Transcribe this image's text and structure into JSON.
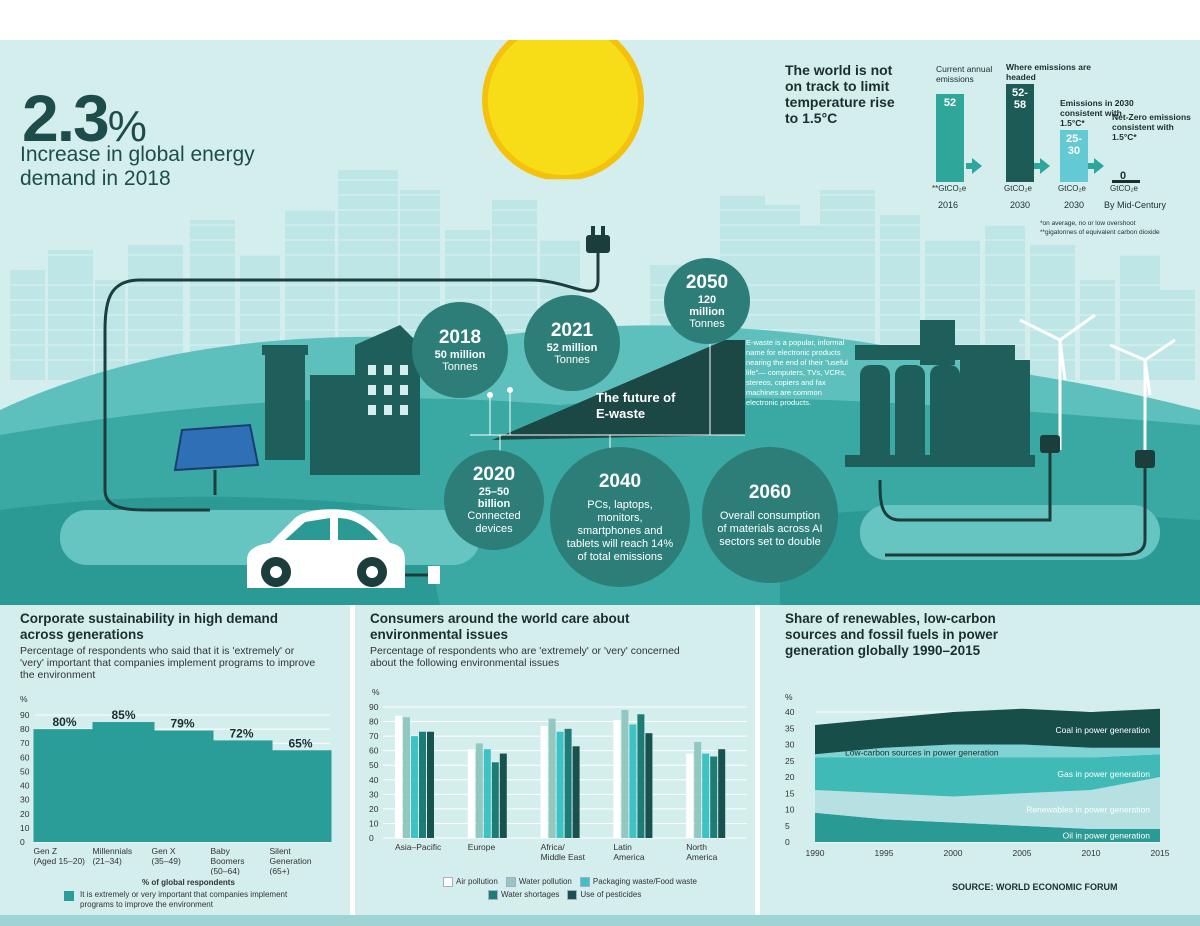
{
  "hero": {
    "big_number": "2.3",
    "big_unit": "%",
    "description": "Increase in global energy demand in 2018",
    "ewaste_title_1": "The future of",
    "ewaste_title_2": "E-waste",
    "ewaste_desc": "E-waste is a popular, informal name for electronic products nearing the end of their \"useful life\"— computers, TVs, VCRs, stereos, copiers and fax machines are common electronic products.",
    "circles": [
      {
        "year": "2018",
        "value": "50 million",
        "unit": "Tonnes"
      },
      {
        "year": "2021",
        "value": "52 million",
        "unit": "Tonnes"
      },
      {
        "year": "2050",
        "value": "120 million",
        "unit": "Tonnes"
      },
      {
        "year": "2020",
        "value": "25–50 billion",
        "unit": "Connected devices"
      },
      {
        "year": "2040",
        "text": "PCs, laptops, monitors, smartphones and tablets will reach 14% of total emissions"
      },
      {
        "year": "2060",
        "text": "Overall consumption of materials across AI sectors set to double"
      }
    ]
  },
  "emissions": {
    "headline": "The world is not on track to limit temperature rise to 1.5°C",
    "columns": [
      {
        "label": "Current annual emissions",
        "value": "52",
        "unit": "**GtCO₂e",
        "year": "2016",
        "color": "#2fa69a"
      },
      {
        "label": "Where emissions are headed",
        "value_top": "52-",
        "value_bottom": "58",
        "unit": "GtCO₂e",
        "year": "2030",
        "color": "#1d5b57"
      },
      {
        "label": "Emissions in 2030 consistent with 1.5°C*",
        "value_top": "25-",
        "value_bottom": "30",
        "unit": "GtCO₂e",
        "year": "2030",
        "color": "#63c9d2"
      },
      {
        "label": "Net-Zero emissions consistent with 1.5°C*",
        "value": "0",
        "unit": "GtCO₂e",
        "year": "By Mid-Century",
        "color": "#1b2e2d"
      }
    ],
    "note1": "*on average, no or low overshoot",
    "note2": "**gigatonnes of equivalent carbon dioxide",
    "colors": {
      "arrow": "#2fa69a"
    }
  },
  "panel1": {
    "title": "Corporate sustainability in high demand across generations",
    "subtitle": "Percentage of respondents who said that it is 'extremely' or 'very' important that companies implement programs to improve the environment",
    "legend_title": "% of global respondents",
    "legend_item": "It is extremely or very important that companies implement programs to improve the environment"
  },
  "panel2": {
    "title": "Consumers around the world care about environmental issues",
    "subtitle": "Percentage of respondents who are 'extremely' or 'very' concerned about the following environmental issues"
  },
  "panel3": {
    "title": "Share of renewables, low-carbon sources and fossil fuels in power generation globally 1990–2015",
    "source": "SOURCE: WORLD ECONOMIC FORUM"
  },
  "chart_data": [
    {
      "type": "bar",
      "ylabel": "%",
      "ylim": [
        0,
        90
      ],
      "yticks": [
        0,
        10,
        20,
        30,
        40,
        50,
        60,
        70,
        80,
        90
      ],
      "categories": [
        "Gen Z (Aged 15–20)",
        "Millennials (21–34)",
        "Gen X (35–49)",
        "Baby Boomers (50–64)",
        "Silent Generation (65+)"
      ],
      "category_lines": [
        [
          "Gen Z",
          "(Aged 15–20)"
        ],
        [
          "Millennials",
          "(21–34)"
        ],
        [
          "Gen X",
          "(35–49)"
        ],
        [
          "Baby",
          "Boomers",
          "(50–64)"
        ],
        [
          "Silent",
          "Generation",
          "(65+)"
        ]
      ],
      "values": [
        80,
        85,
        79,
        72,
        65
      ],
      "data_labels": [
        "80%",
        "85%",
        "79%",
        "72%",
        "65%"
      ],
      "color": "#2a9d98"
    },
    {
      "type": "bar",
      "ylabel": "%",
      "ylim": [
        0,
        90
      ],
      "yticks": [
        0,
        10,
        20,
        30,
        40,
        50,
        60,
        70,
        80,
        90
      ],
      "categories": [
        "Asia–Pacific",
        "Europe",
        "Africa/ Middle East",
        "Latin America",
        "North America"
      ],
      "category_lines": [
        [
          "Asia–Pacific"
        ],
        [
          "Europe"
        ],
        [
          "Africa/",
          "Middle East"
        ],
        [
          "Latin",
          "America"
        ],
        [
          "North",
          "America"
        ]
      ],
      "series": [
        {
          "name": "Air pollution",
          "values": [
            84,
            61,
            77,
            81,
            58
          ],
          "color": "#ffffff"
        },
        {
          "name": "Water pollution",
          "values": [
            83,
            65,
            82,
            88,
            66
          ],
          "color": "#92c7c2"
        },
        {
          "name": "Packaging waste/Food waste",
          "values": [
            70,
            61,
            73,
            78,
            58
          ],
          "color": "#3fc2c3"
        },
        {
          "name": "Water shortages",
          "values": [
            73,
            52,
            75,
            85,
            56
          ],
          "color": "#1e7c77"
        },
        {
          "name": "Use of pesticides",
          "values": [
            73,
            58,
            63,
            72,
            61
          ],
          "color": "#18524e"
        }
      ]
    },
    {
      "type": "area",
      "ylabel": "%",
      "ylim": [
        0,
        40
      ],
      "yticks": [
        0,
        5,
        10,
        15,
        20,
        25,
        30,
        35,
        40
      ],
      "x": [
        1990,
        1995,
        2000,
        2005,
        2010,
        2015
      ],
      "series": [
        {
          "name": "Oil in power generation",
          "values": [
            9,
            7,
            6,
            5,
            4,
            4
          ],
          "color": "#2a9a95"
        },
        {
          "name": "Renewables in power generation",
          "values": [
            7,
            8,
            8,
            10,
            12,
            16
          ],
          "color": "#b6e0e1"
        },
        {
          "name": "Gas in power generation",
          "values": [
            10,
            11,
            12,
            11,
            10,
            7
          ],
          "color": "#3fbab6"
        },
        {
          "name": "Low-carbon sources in power generation",
          "values": [
            1,
            3,
            4,
            4,
            3,
            2
          ],
          "color": "#7fd3d3"
        },
        {
          "name": "Coal in power generation",
          "values": [
            9,
            9,
            10,
            11,
            11,
            12
          ],
          "color": "#174e4a"
        }
      ]
    }
  ]
}
